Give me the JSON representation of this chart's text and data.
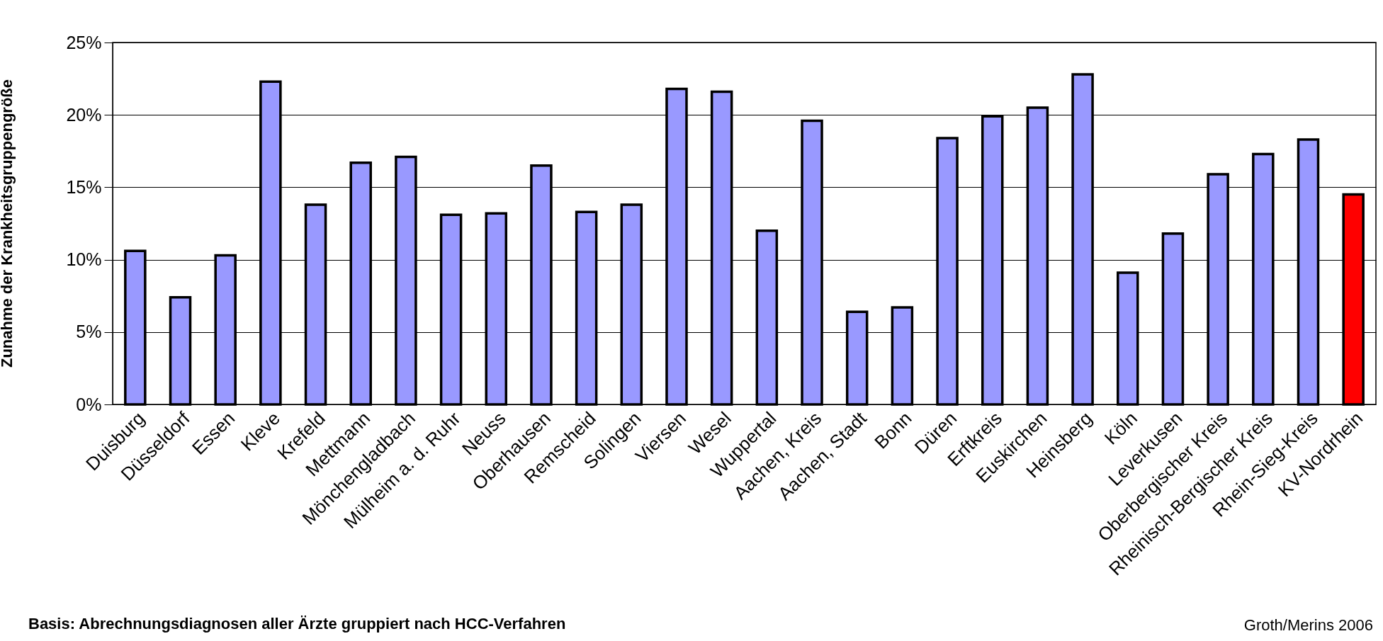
{
  "chart_data": {
    "type": "bar",
    "ylabel": "Zunahme der Krankheitsgruppengröße",
    "categories": [
      "Duisburg",
      "Düsseldorf",
      "Essen",
      "Kleve",
      "Krefeld",
      "Mettmann",
      "Mönchengladbach",
      "Mülheim a. d. Ruhr",
      "Neuss",
      "Oberhausen",
      "Remscheid",
      "Solingen",
      "Viersen",
      "Wesel",
      "Wuppertal",
      "Aachen, Kreis",
      "Aachen, Stadt",
      "Bonn",
      "Düren",
      "Erftkreis",
      "Euskirchen",
      "Heinsberg",
      "Köln",
      "Leverkusen",
      "Oberbergischer Kreis",
      "Rheinisch-Bergischer Kreis",
      "Rhein-Sieg-Kreis",
      "KV-Nordrhein"
    ],
    "values": [
      10.6,
      7.4,
      10.3,
      22.3,
      13.8,
      16.7,
      17.1,
      13.1,
      13.2,
      16.5,
      13.3,
      13.8,
      21.8,
      21.6,
      12.0,
      19.6,
      6.4,
      6.7,
      18.4,
      19.9,
      20.5,
      22.8,
      9.1,
      11.8,
      15.9,
      17.3,
      18.3,
      14.5
    ],
    "colors": [
      "#9999ff",
      "#9999ff",
      "#9999ff",
      "#9999ff",
      "#9999ff",
      "#9999ff",
      "#9999ff",
      "#9999ff",
      "#9999ff",
      "#9999ff",
      "#9999ff",
      "#9999ff",
      "#9999ff",
      "#9999ff",
      "#9999ff",
      "#9999ff",
      "#9999ff",
      "#9999ff",
      "#9999ff",
      "#9999ff",
      "#9999ff",
      "#9999ff",
      "#9999ff",
      "#9999ff",
      "#9999ff",
      "#9999ff",
      "#9999ff",
      "#ff0000"
    ],
    "ylim": [
      0,
      25
    ],
    "yticks": [
      {
        "value": 0,
        "label": "0%"
      },
      {
        "value": 5,
        "label": "5%"
      },
      {
        "value": 10,
        "label": "10%"
      },
      {
        "value": 15,
        "label": "15%"
      },
      {
        "value": 20,
        "label": "20%"
      },
      {
        "value": 25,
        "label": "25%"
      }
    ],
    "grid": "y",
    "annotations": [
      "Basis: Abrechnungsdiagnosen aller Ärzte gruppiert nach HCC-Verfahren",
      "Groth/Merins 2006"
    ]
  }
}
